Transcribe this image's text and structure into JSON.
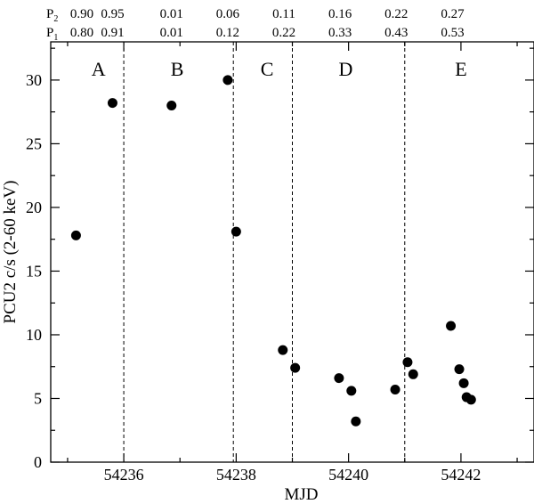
{
  "chart_data": {
    "type": "scatter",
    "xlabel": "MJD",
    "ylabel": "PCU2 c/s (2-60 keV)",
    "xlim": [
      54234.7,
      54243.3
    ],
    "ylim": [
      0,
      33
    ],
    "x_ticks": [
      54236,
      54238,
      54240,
      54242
    ],
    "y_ticks": [
      0,
      5,
      10,
      15,
      20,
      25,
      30
    ],
    "grid": false,
    "points": [
      {
        "x": 54235.15,
        "y": 17.8
      },
      {
        "x": 54235.8,
        "y": 28.2
      },
      {
        "x": 54236.85,
        "y": 28.0
      },
      {
        "x": 54237.85,
        "y": 30.0
      },
      {
        "x": 54238.0,
        "y": 18.1
      },
      {
        "x": 54238.83,
        "y": 8.8
      },
      {
        "x": 54239.05,
        "y": 7.4
      },
      {
        "x": 54239.83,
        "y": 6.6
      },
      {
        "x": 54240.05,
        "y": 5.6
      },
      {
        "x": 54240.13,
        "y": 3.2
      },
      {
        "x": 54240.83,
        "y": 5.7
      },
      {
        "x": 54241.05,
        "y": 7.85
      },
      {
        "x": 54241.15,
        "y": 6.9
      },
      {
        "x": 54241.82,
        "y": 10.7
      },
      {
        "x": 54241.97,
        "y": 7.3
      },
      {
        "x": 54242.05,
        "y": 6.2
      },
      {
        "x": 54242.1,
        "y": 5.1
      },
      {
        "x": 54242.18,
        "y": 4.9
      }
    ],
    "dividers": [
      54236.0,
      54237.95,
      54239.0,
      54241.0
    ],
    "regions": [
      {
        "label": "A",
        "x": 54235.55
      },
      {
        "label": "B",
        "x": 54236.95
      },
      {
        "label": "C",
        "x": 54238.55
      },
      {
        "label": "D",
        "x": 54239.95
      },
      {
        "label": "E",
        "x": 54242.0
      }
    ],
    "phase_rows": [
      {
        "name": "P",
        "sub": "2"
      },
      {
        "name": "P",
        "sub": "1"
      }
    ],
    "phase_columns": [
      {
        "x": 54235.15,
        "p2": "0.90",
        "p1": "0.80"
      },
      {
        "x": 54235.8,
        "p2": "0.95",
        "p1": "0.91"
      },
      {
        "x": 54236.85,
        "p2": "0.01",
        "p1": "0.01"
      },
      {
        "x": 54237.85,
        "p2": "0.06",
        "p1": "0.12"
      },
      {
        "x": 54238.85,
        "p2": "0.11",
        "p1": "0.22"
      },
      {
        "x": 54239.85,
        "p2": "0.16",
        "p1": "0.33"
      },
      {
        "x": 54240.85,
        "p2": "0.22",
        "p1": "0.43"
      },
      {
        "x": 54241.85,
        "p2": "0.27",
        "p1": "0.53"
      }
    ]
  }
}
